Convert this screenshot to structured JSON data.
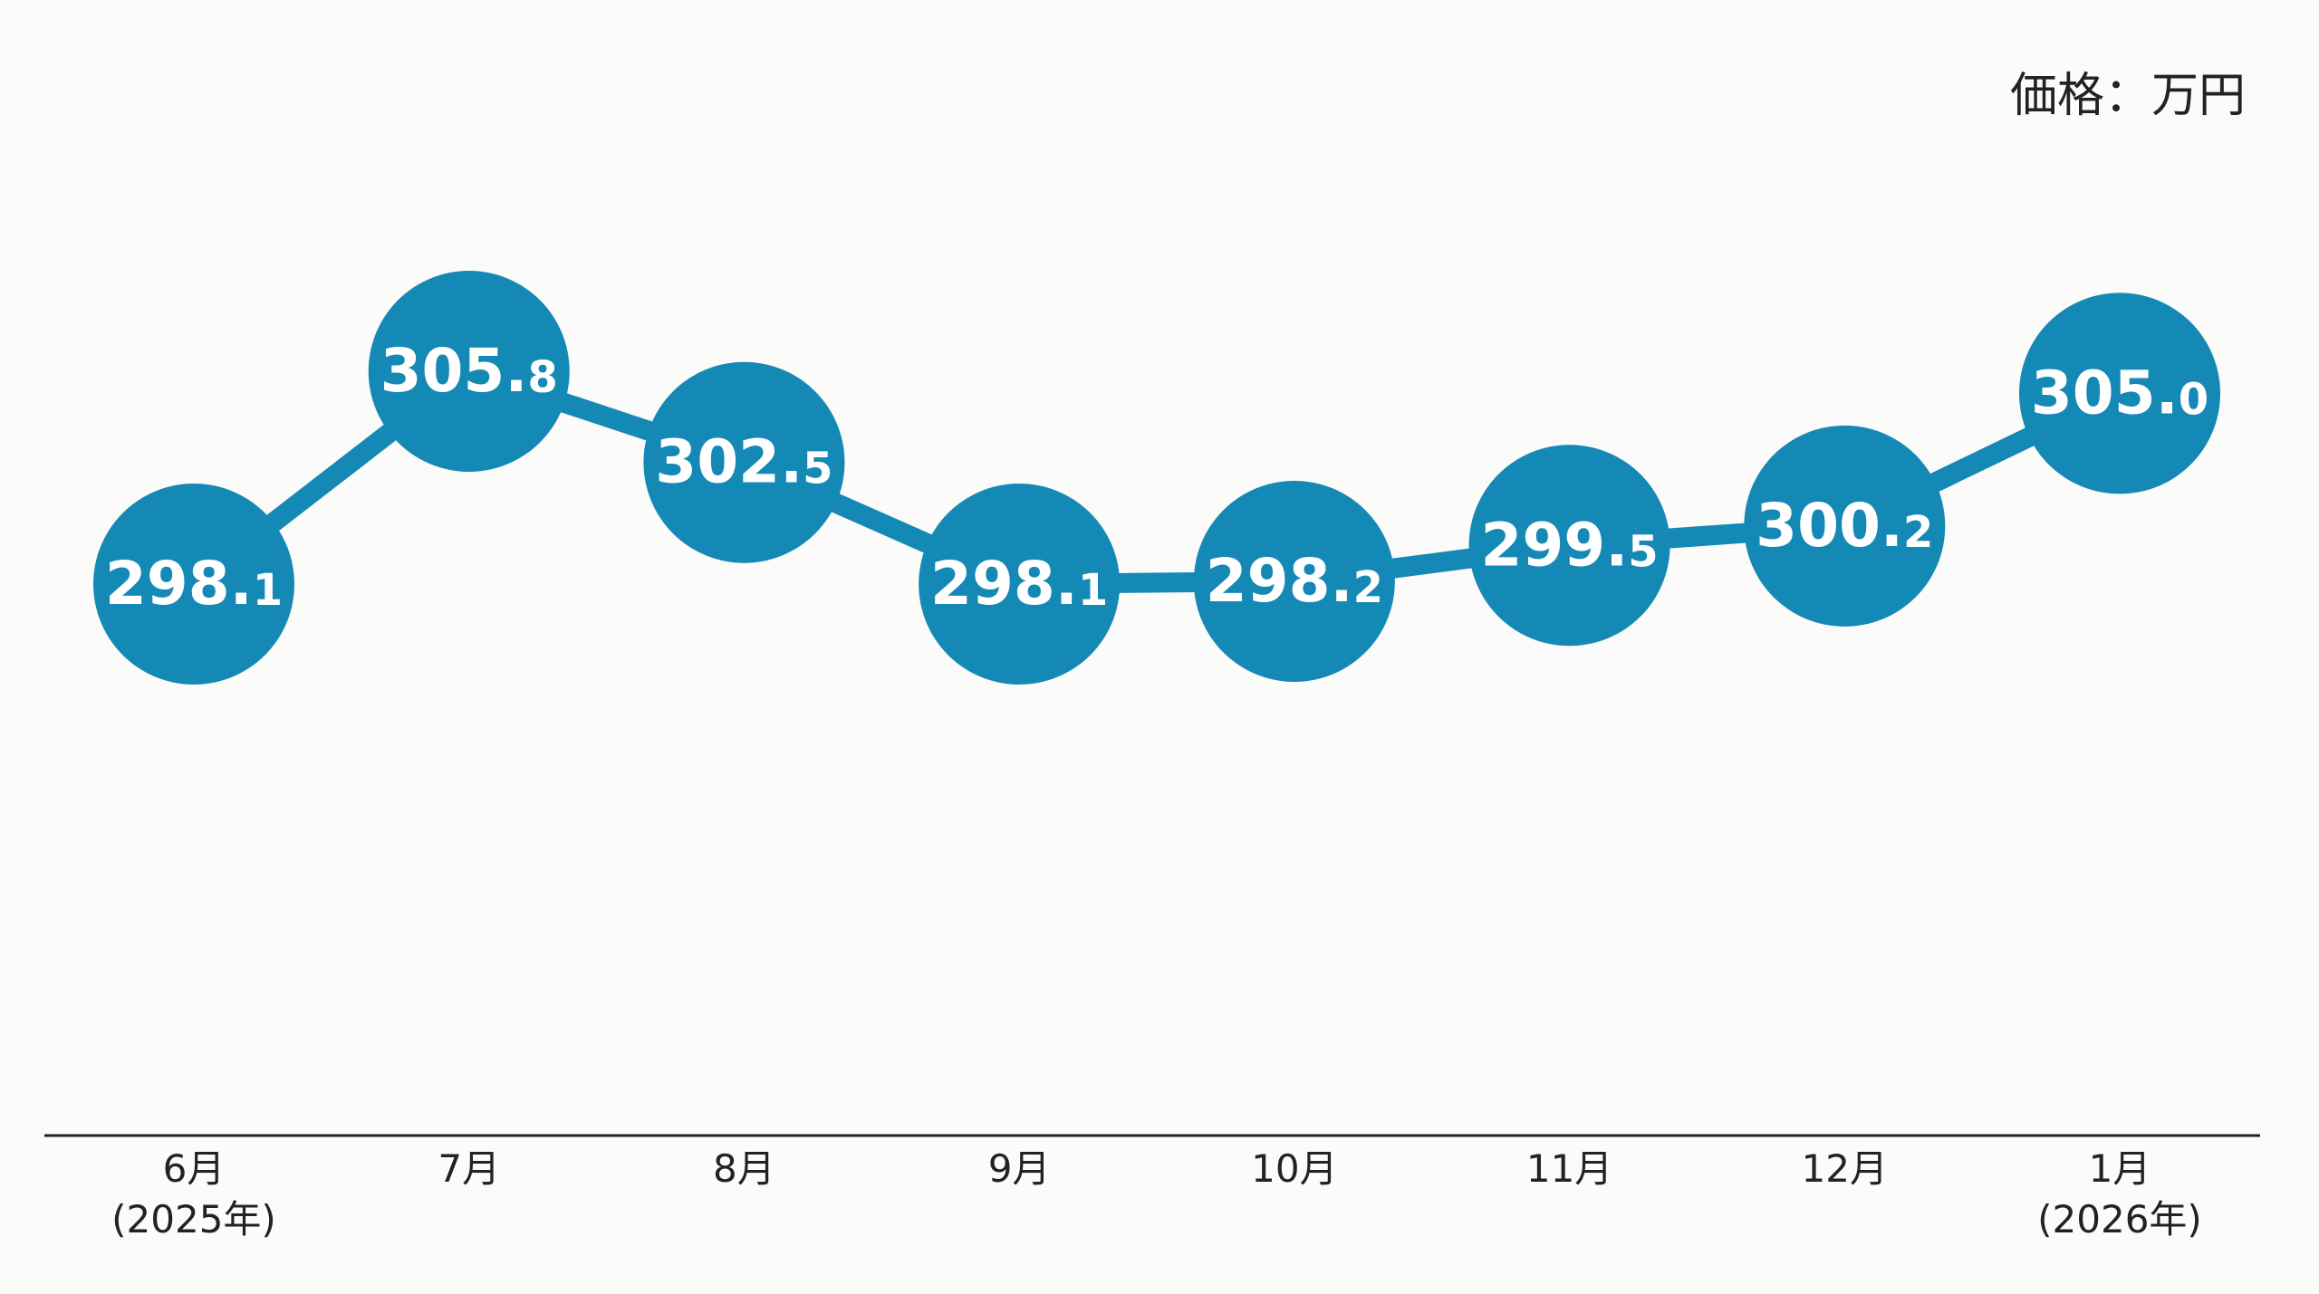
{
  "chart_data": {
    "type": "line",
    "y_label": "価格：万円",
    "categories": [
      "6月\n(2025年)",
      "7月",
      "8月",
      "9月",
      "10月",
      "11月",
      "12月",
      "1月\n(2026年)"
    ],
    "values": [
      298.1,
      305.8,
      302.5,
      298.1,
      298.2,
      299.5,
      300.2,
      305.0
    ],
    "value_labels": [
      "298.1",
      "305.8",
      "302.5",
      "298.1",
      "298.2",
      "299.5",
      "300.2",
      "305.0"
    ],
    "color": "#1589b5"
  }
}
